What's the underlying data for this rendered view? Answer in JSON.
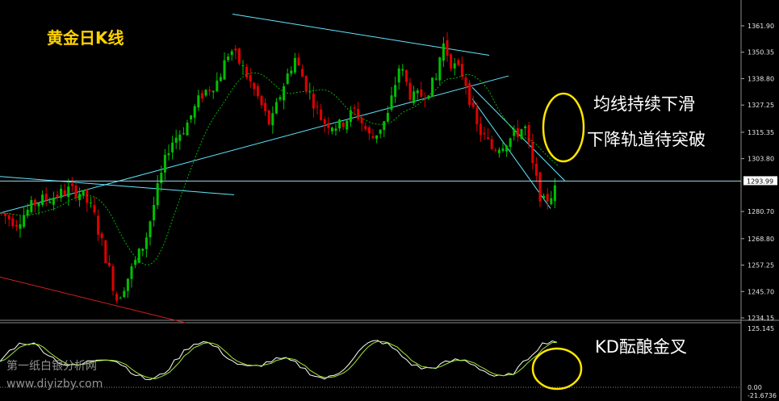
{
  "chart_data": {
    "type": "candlestick",
    "title": "黄金日K线",
    "annotations": [
      "均线持续下滑",
      "下降轨道待突破",
      "KD酝酿金叉"
    ],
    "watermark": [
      "第一纸白银分析网",
      "www.diyizby.com"
    ],
    "price_axis": {
      "ticks": [
        "1361.90",
        "1350.35",
        "1338.80",
        "1327.25",
        "1315.35",
        "1303.80",
        "1280.70",
        "1268.80",
        "1257.25",
        "1245.70",
        "1234.15"
      ],
      "current_price": "1293.99",
      "range": [
        1232,
        1370
      ]
    },
    "kd_axis": {
      "ticks": [
        "125.145",
        "0.00",
        "-21.6736"
      ],
      "range": [
        -25,
        130
      ]
    },
    "ma_shown": true,
    "trendlines_shown": true,
    "colors": {
      "background": "#000000",
      "bull_candle": "#00c000",
      "bear_candle": "#e00000",
      "moving_average": "#00b400",
      "trendline": "#64e6ff",
      "lower_channel": "#d21e1e",
      "k_line": "#ffffff",
      "d_line": "#a0e632",
      "highlight_ellipse": "#ffe600",
      "title": "#ffd200"
    }
  }
}
